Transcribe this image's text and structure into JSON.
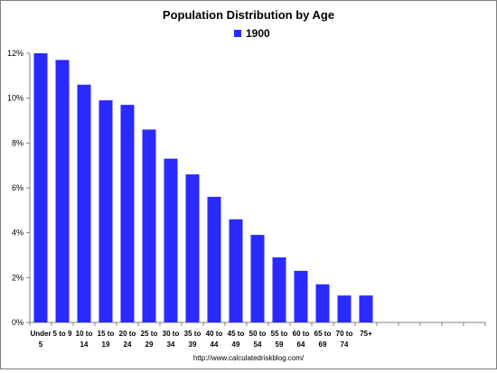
{
  "chart_data": {
    "type": "bar",
    "title": "Population Distribution by Age",
    "xlabel": "",
    "ylabel": "",
    "ylim": [
      0,
      12
    ],
    "y_ticks": [
      "0%",
      "2%",
      "4%",
      "6%",
      "8%",
      "10%",
      "12%"
    ],
    "y_tick_values": [
      0,
      2,
      4,
      6,
      8,
      10,
      12
    ],
    "value_unit": "%",
    "grid": false,
    "legend_position": "top",
    "categories": [
      [
        "Under",
        "5"
      ],
      [
        "5 to 9",
        ""
      ],
      [
        "10 to",
        "14"
      ],
      [
        "15 to",
        "19"
      ],
      [
        "20 to",
        "24"
      ],
      [
        "25 to",
        "29"
      ],
      [
        "30 to",
        "34"
      ],
      [
        "35 to",
        "39"
      ],
      [
        "40 to",
        "44"
      ],
      [
        "45 to",
        "49"
      ],
      [
        "50 to",
        "54"
      ],
      [
        "55 to",
        "59"
      ],
      [
        "60 to",
        "64"
      ],
      [
        "65 to",
        "69"
      ],
      [
        "70 to",
        "74"
      ],
      [
        "75+",
        ""
      ],
      [
        "",
        ""
      ],
      [
        "",
        ""
      ],
      [
        "",
        ""
      ],
      [
        "",
        ""
      ],
      [
        "",
        ""
      ]
    ],
    "series": [
      {
        "name": "1900",
        "color": "#2a2aff",
        "values": [
          12.0,
          11.7,
          10.6,
          9.9,
          9.7,
          8.6,
          7.3,
          6.6,
          5.6,
          4.6,
          3.9,
          2.9,
          2.3,
          1.7,
          1.2,
          1.2,
          null,
          null,
          null,
          null,
          null
        ]
      }
    ],
    "source_note": "http://www.calculatedriskblog.com/"
  }
}
